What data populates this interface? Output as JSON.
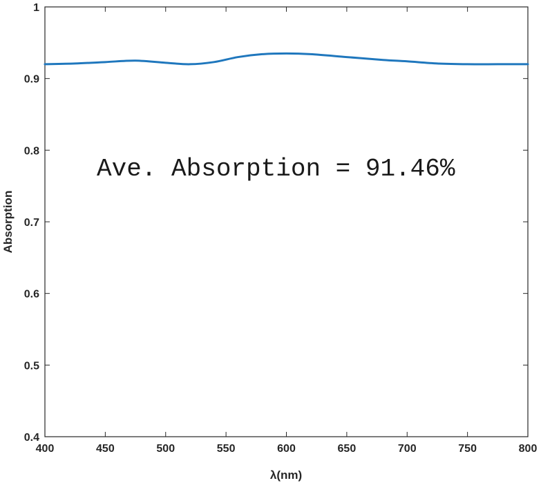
{
  "chart_data": {
    "type": "line",
    "title": "",
    "xlabel": "λ(nm)",
    "ylabel": "Absorption",
    "xlim": [
      400,
      800
    ],
    "ylim": [
      0.4,
      1.0
    ],
    "xticks": [
      400,
      450,
      500,
      550,
      600,
      650,
      700,
      750,
      800
    ],
    "yticks": [
      0.4,
      0.5,
      0.6,
      0.7,
      0.8,
      0.9,
      1.0
    ],
    "ytick_labels": [
      "0.4",
      "0.5",
      "0.6",
      "0.7",
      "0.8",
      "0.9",
      "1"
    ],
    "grid": false,
    "annotation": "Ave. Absorption = 91.46%",
    "series": [
      {
        "color": "#1f77bd",
        "x": [
          400,
          425,
          450,
          475,
          500,
          520,
          540,
          560,
          580,
          600,
          620,
          650,
          680,
          700,
          725,
          750,
          775,
          800
        ],
        "y": [
          0.92,
          0.921,
          0.923,
          0.925,
          0.922,
          0.92,
          0.923,
          0.93,
          0.934,
          0.935,
          0.934,
          0.93,
          0.926,
          0.924,
          0.921,
          0.92,
          0.92,
          0.92
        ]
      }
    ]
  }
}
